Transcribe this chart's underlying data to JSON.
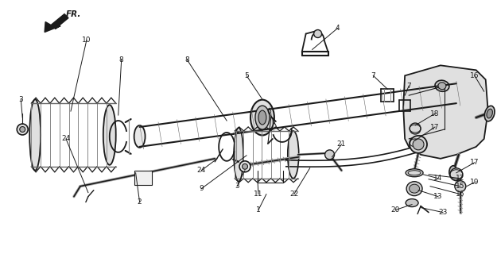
{
  "background_color": "#ffffff",
  "fig_width": 6.25,
  "fig_height": 3.2,
  "dpi": 100,
  "line_color": "#1a1a1a",
  "label_fontsize": 6.5,
  "fr_label": "FR."
}
